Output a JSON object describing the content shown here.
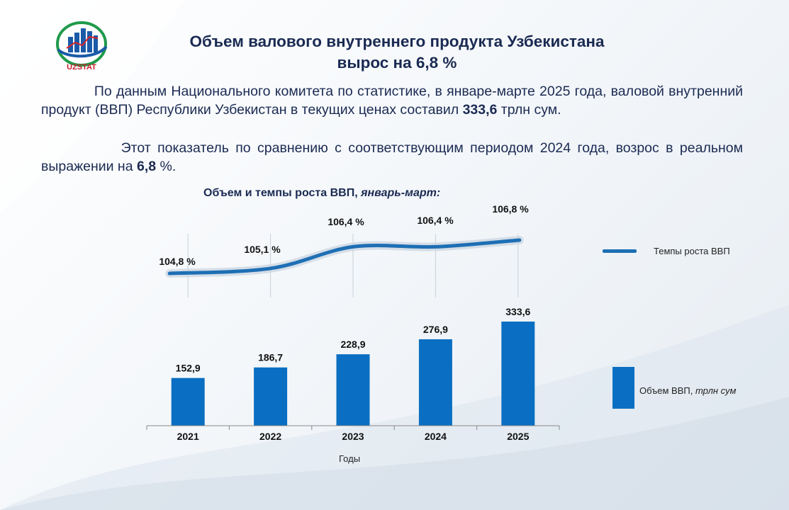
{
  "logo": {
    "text": "UZSTAT"
  },
  "header": {
    "title_line1": "Объем валового внутреннего продукта Узбекистана",
    "title_line2": "вырос на 6,8 %"
  },
  "body": {
    "p1_pre": "По данным Национального комитета по статистике, в январе-марте 2025 года, валовой внутренний продукт (ВВП) Республики Узбекистан в текущих ценах составил ",
    "p1_bold": "333,6",
    "p1_post": " трлн сум.",
    "p2_pre": "Этот показатель по сравнению с соответствующим периодом 2024 года, возрос в реальном выражении на ",
    "p2_bold": "6,8",
    "p2_post": " %."
  },
  "chart_data": {
    "type": "bar+line",
    "title": "Объем и темпы роста ВВП,",
    "title_italic": " январь-март:",
    "xlabel": "Годы",
    "categories": [
      "2021",
      "2022",
      "2023",
      "2024",
      "2025"
    ],
    "series": [
      {
        "name": "Объем ВВП,",
        "name_italic": " трлн сум",
        "type": "bar",
        "values": [
          152.9,
          186.7,
          228.9,
          276.9,
          333.6
        ],
        "labels": [
          "152,9",
          "186,7",
          "228,9",
          "276,9",
          "333,6"
        ]
      },
      {
        "name": "Темпы роста ВВП",
        "type": "line",
        "values": [
          104.8,
          105.1,
          106.4,
          106.4,
          106.8
        ],
        "labels": [
          "104,8 %",
          "105,1 %",
          "106,4 %",
          "106,4 %",
          "106,8 %"
        ]
      }
    ],
    "colors": {
      "bar": "#0a6fc2",
      "line": "#1e6fb4",
      "text": "#1a2a52"
    }
  }
}
